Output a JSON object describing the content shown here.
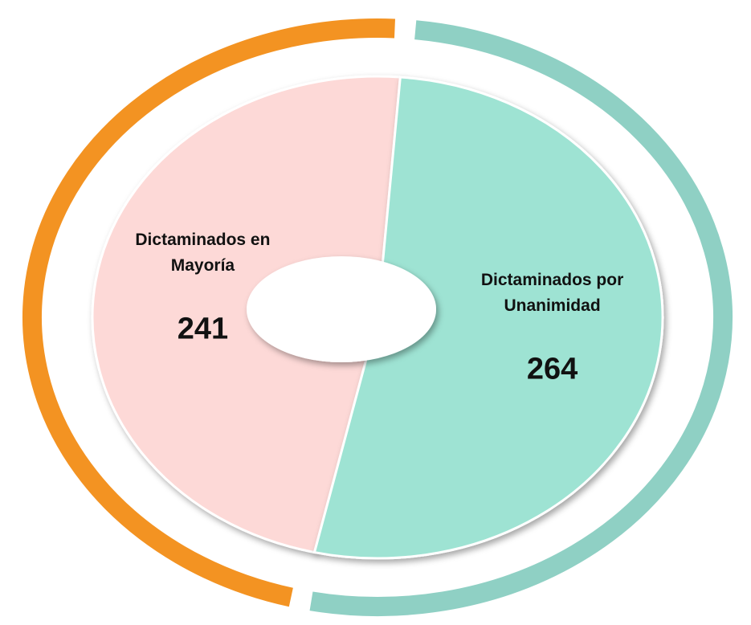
{
  "chart_data": {
    "type": "pie",
    "categories": [
      "Dictaminados en Mayoría",
      "Dictaminados por Unanimidad"
    ],
    "values": [
      241,
      264
    ],
    "colors": [
      "#fdd9d7",
      "#9ee3d3"
    ],
    "ring_colors": [
      "#f39322",
      "#8fd0c4"
    ]
  }
}
